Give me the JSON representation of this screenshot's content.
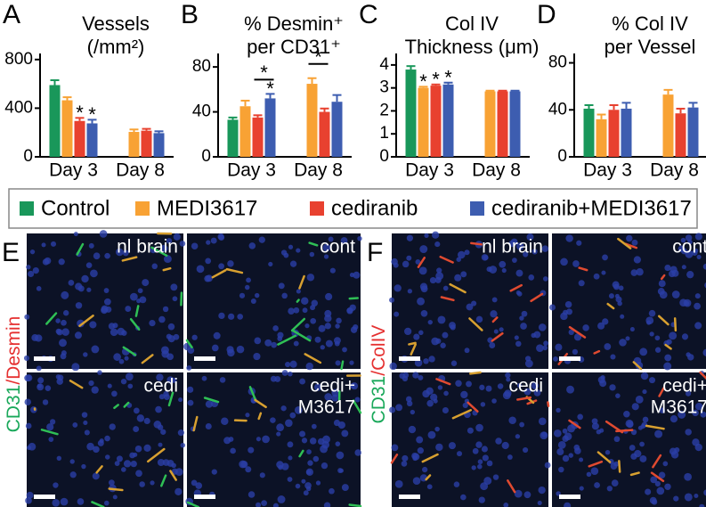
{
  "chart_data": [
    {
      "type": "bar",
      "panel": "A",
      "title": [
        "Vessels",
        "(/mm²)"
      ],
      "categories": [
        "Day 3",
        "Day 8"
      ],
      "ylim": [
        0,
        850
      ],
      "yticks": [
        0,
        400,
        800
      ],
      "series": [
        {
          "name": "Control",
          "color": "#19975a",
          "values": [
            590,
            null
          ],
          "errors": [
            40,
            null
          ]
        },
        {
          "name": "MEDI3617",
          "color": "#f8a234",
          "values": [
            465,
            205
          ],
          "errors": [
            25,
            20
          ]
        },
        {
          "name": "cediranib",
          "color": "#e8412f",
          "values": [
            295,
            215
          ],
          "errors": [
            25,
            15
          ]
        },
        {
          "name": "cediranib+MEDI3617",
          "color": "#3d5db0",
          "values": [
            275,
            195
          ],
          "errors": [
            30,
            15
          ]
        }
      ],
      "annotations": [
        {
          "text": "*",
          "series": "cediranib",
          "category": "Day 3"
        },
        {
          "text": "*",
          "series": "cediranib+MEDI3617",
          "category": "Day 3"
        }
      ]
    },
    {
      "type": "bar",
      "panel": "B",
      "title": [
        "% Desmin⁺",
        "per CD31⁺"
      ],
      "categories": [
        "Day 3",
        "Day 8"
      ],
      "ylim": [
        0,
        92
      ],
      "yticks": [
        0,
        40,
        80
      ],
      "series": [
        {
          "name": "Control",
          "color": "#19975a",
          "values": [
            33,
            null
          ],
          "errors": [
            2,
            null
          ]
        },
        {
          "name": "MEDI3617",
          "color": "#f8a234",
          "values": [
            45,
            65
          ],
          "errors": [
            5,
            5
          ]
        },
        {
          "name": "cediranib",
          "color": "#e8412f",
          "values": [
            35,
            40
          ],
          "errors": [
            2,
            3
          ]
        },
        {
          "name": "cediranib+MEDI3617",
          "color": "#3d5db0",
          "values": [
            52,
            49
          ],
          "errors": [
            4,
            6
          ]
        }
      ],
      "annotations": [
        {
          "text": "*",
          "series": "cediranib+MEDI3617",
          "category": "Day 3"
        },
        {
          "text": "*",
          "category": "Day 3",
          "bracket": [
            "cediranib",
            "cediranib+MEDI3617"
          ]
        },
        {
          "text": "*",
          "category": "Day 8",
          "bracket": [
            "MEDI3617",
            "cediranib"
          ]
        }
      ]
    },
    {
      "type": "bar",
      "panel": "C",
      "title": [
        "Col IV",
        "Thickness (μm)"
      ],
      "categories": [
        "Day 3",
        "Day 8"
      ],
      "ylim": [
        0,
        4.5
      ],
      "yticks": [
        0,
        1,
        2,
        3,
        4
      ],
      "series": [
        {
          "name": "Control",
          "color": "#19975a",
          "values": [
            3.8,
            null
          ],
          "errors": [
            0.15,
            null
          ]
        },
        {
          "name": "MEDI3617",
          "color": "#f8a234",
          "values": [
            3.0,
            2.85
          ],
          "errors": [
            0.05,
            0.03
          ]
        },
        {
          "name": "cediranib",
          "color": "#e8412f",
          "values": [
            3.1,
            2.85
          ],
          "errors": [
            0.05,
            0.03
          ]
        },
        {
          "name": "cediranib+MEDI3617",
          "color": "#3d5db0",
          "values": [
            3.15,
            2.85
          ],
          "errors": [
            0.08,
            0.03
          ]
        }
      ],
      "annotations": [
        {
          "text": "*",
          "series": "MEDI3617",
          "category": "Day 3"
        },
        {
          "text": "*",
          "series": "cediranib",
          "category": "Day 3"
        },
        {
          "text": "*",
          "series": "cediranib+MEDI3617",
          "category": "Day 3"
        }
      ]
    },
    {
      "type": "bar",
      "panel": "D",
      "title": [
        "% Col IV",
        "per Vessel"
      ],
      "categories": [
        "Day 3",
        "Day 8"
      ],
      "ylim": [
        0,
        88
      ],
      "yticks": [
        0,
        40,
        80
      ],
      "series": [
        {
          "name": "Control",
          "color": "#19975a",
          "values": [
            41,
            null
          ],
          "errors": [
            3,
            null
          ]
        },
        {
          "name": "MEDI3617",
          "color": "#f8a234",
          "values": [
            32,
            53
          ],
          "errors": [
            4,
            4
          ]
        },
        {
          "name": "cediranib",
          "color": "#e8412f",
          "values": [
            40,
            37
          ],
          "errors": [
            4,
            4
          ]
        },
        {
          "name": "cediranib+MEDI3617",
          "color": "#3d5db0",
          "values": [
            41,
            42
          ],
          "errors": [
            5,
            4
          ]
        }
      ],
      "annotations": []
    }
  ],
  "image_panels": [
    {
      "letter": "E",
      "stain": [
        "CD31",
        "/Desmin"
      ],
      "labels": [
        "nl brain",
        "cont",
        "cedi",
        [
          "cedi+",
          "M3617"
        ]
      ]
    },
    {
      "letter": "F",
      "stain": [
        "CD31",
        "/ColIV"
      ],
      "labels": [
        "nl brain",
        "cont",
        "cedi",
        [
          "cedi+",
          "M3617"
        ]
      ]
    }
  ]
}
